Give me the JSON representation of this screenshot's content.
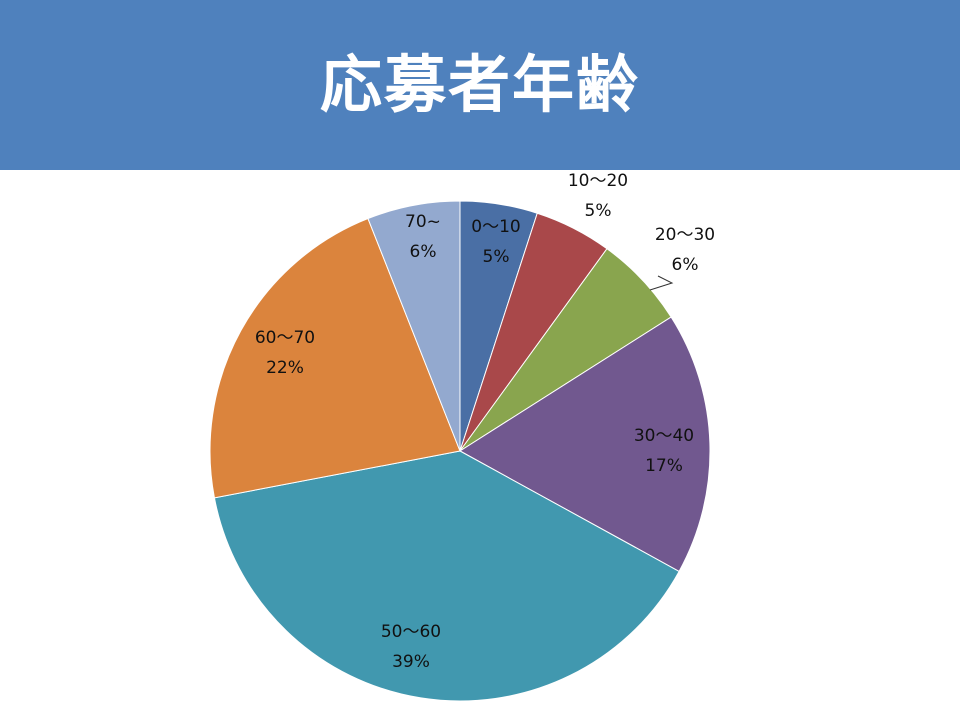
{
  "header": {
    "title": "応募者年齢"
  },
  "colors": {
    "header_bg": "#4f81bd",
    "title_text": "#ffffff"
  },
  "chart_data": {
    "type": "pie",
    "title": "",
    "start_angle_deg": 0,
    "direction": "clockwise",
    "slices": [
      {
        "category": "0〜10",
        "value": 5,
        "value_label": "5%",
        "color": "#4a6fa5"
      },
      {
        "category": "10〜20",
        "value": 5,
        "value_label": "5%",
        "color": "#a9484a"
      },
      {
        "category": "20〜30",
        "value": 6,
        "value_label": "6%",
        "color": "#89a54e"
      },
      {
        "category": "30〜40",
        "value": 17,
        "value_label": "17%",
        "color": "#71588f"
      },
      {
        "category": "50〜60",
        "value": 39,
        "value_label": "39%",
        "color": "#4198af"
      },
      {
        "category": "60〜70",
        "value": 22,
        "value_label": "22%",
        "color": "#db843d"
      },
      {
        "category": "70~",
        "value": 6,
        "value_label": "6%",
        "color": "#93a9cf"
      }
    ]
  }
}
